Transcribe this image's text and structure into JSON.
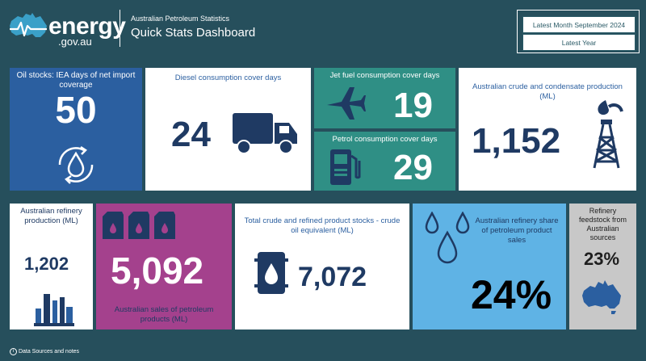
{
  "header": {
    "logo_text": "energy",
    "logo_sub": ".gov.au",
    "small_title": "Australian Petroleum Statistics",
    "title": "Quick Stats Dashboard",
    "latest_month_button": "Latest Month September 2024",
    "latest_year_button": "Latest Year"
  },
  "tiles": {
    "oil_stocks": {
      "label": "Oil stocks: IEA days of net import coverage",
      "value": "50"
    },
    "diesel": {
      "label": "Diesel consumption cover days",
      "value": "24"
    },
    "jet_fuel": {
      "label": "Jet fuel consumption cover days",
      "value": "19"
    },
    "petrol": {
      "label": "Petrol consumption cover days",
      "value": "29"
    },
    "crude_production": {
      "label": "Australian crude and condensate production (ML)",
      "value": "1,152"
    },
    "refinery_production": {
      "label": "Australian refinery production (ML)",
      "value": "1,202"
    },
    "sales": {
      "label": "Australian sales of petroleum products (ML)",
      "value": "5,092"
    },
    "total_stocks": {
      "label": "Total crude and refined product stocks - crude oil equivalent (ML)",
      "value": "7,072"
    },
    "refinery_share": {
      "label": "Australian refinery share of petroleum product sales",
      "value": "24%"
    },
    "feedstock": {
      "label": "Refinery feedstock from Australian sources",
      "value": "23%"
    }
  },
  "footer": {
    "notes_link": "Data Sources and notes"
  },
  "colors": {
    "background": "#264f5c",
    "navy": "#1f3a63",
    "teal": "#2f8f85",
    "blue": "#2b5fa0",
    "magenta": "#a4418d",
    "light_blue": "#5fb3e5",
    "grey": "#c8c8c8"
  }
}
